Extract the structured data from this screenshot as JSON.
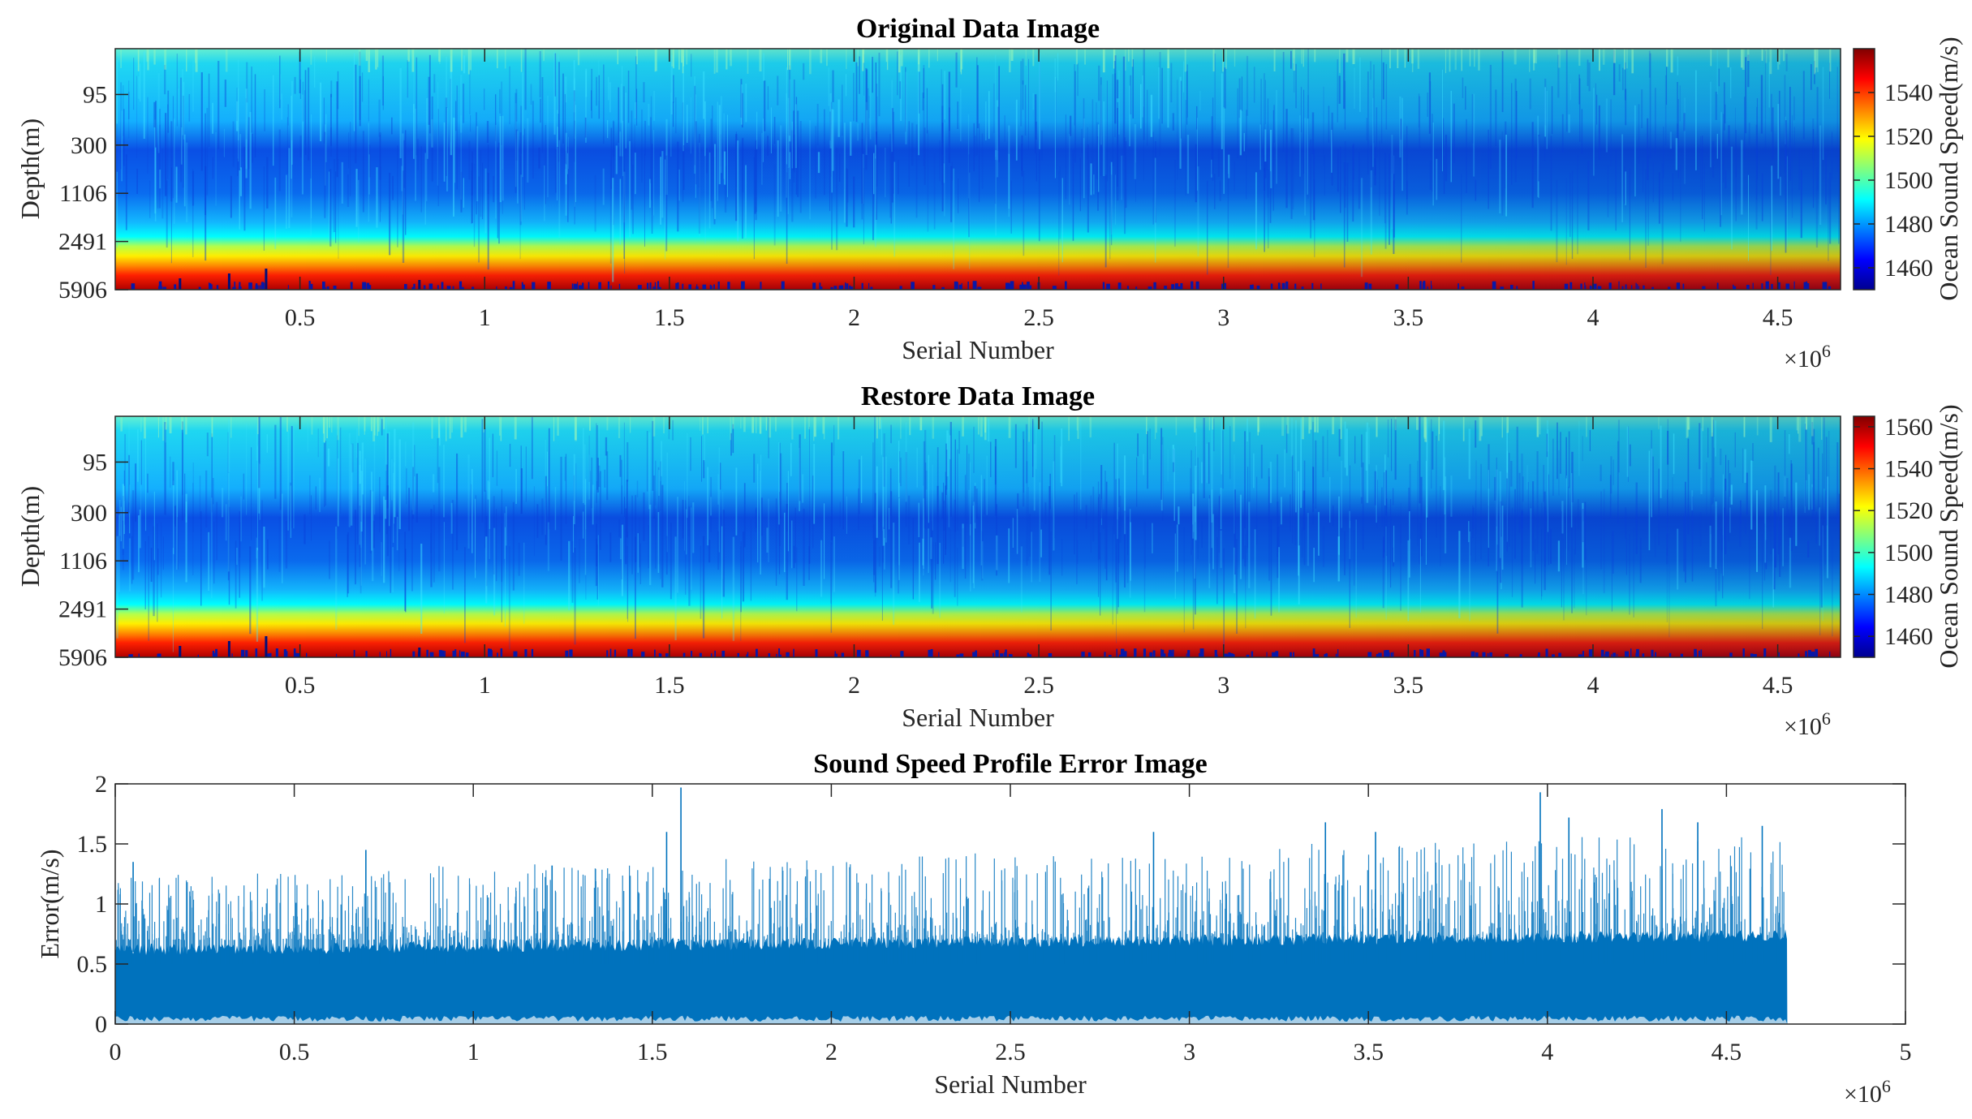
{
  "chart_data": [
    {
      "type": "heatmap",
      "title": "Original Data Image",
      "xlabel": "Serial Number",
      "ylabel": "Depth(m)",
      "x_multiplier": "×10",
      "x_multiplier_exp": "6",
      "x_ticks": [
        0.5,
        1,
        1.5,
        2,
        2.5,
        3,
        3.5,
        4,
        4.5
      ],
      "x_tick_labels": [
        "0.5",
        "1",
        "1.5",
        "2",
        "2.5",
        "3",
        "3.5",
        "4",
        "4.5"
      ],
      "x_range": [
        0,
        4.67
      ],
      "y_tick_labels": [
        "95",
        "300",
        "1106",
        "2491",
        "5906"
      ],
      "colorbar": {
        "label": "Ocean Sound Speed(m/s)",
        "range": [
          1450,
          1560
        ],
        "ticks": [
          1460,
          1480,
          1500,
          1520,
          1540
        ],
        "tick_labels": [
          "1460",
          "1480",
          "1500",
          "1520",
          "1540"
        ]
      },
      "depth_profile_bands": [
        {
          "depth_band": "surface",
          "speed": 1505
        },
        {
          "depth_band": "95",
          "speed": 1490
        },
        {
          "depth_band": "300",
          "speed": 1478
        },
        {
          "depth_band": "1106",
          "speed": 1476
        },
        {
          "depth_band": "2491",
          "speed": 1495
        },
        {
          "depth_band": "5906",
          "speed": 1555
        }
      ]
    },
    {
      "type": "heatmap",
      "title": "Restore Data Image",
      "xlabel": "Serial Number",
      "ylabel": "Depth(m)",
      "x_multiplier": "×10",
      "x_multiplier_exp": "6",
      "x_ticks": [
        0.5,
        1,
        1.5,
        2,
        2.5,
        3,
        3.5,
        4,
        4.5
      ],
      "x_tick_labels": [
        "0.5",
        "1",
        "1.5",
        "2",
        "2.5",
        "3",
        "3.5",
        "4",
        "4.5"
      ],
      "x_range": [
        0,
        4.67
      ],
      "y_tick_labels": [
        "95",
        "300",
        "1106",
        "2491",
        "5906"
      ],
      "colorbar": {
        "label": "Ocean Sound Speed(m/s)",
        "range": [
          1450,
          1565
        ],
        "ticks": [
          1460,
          1480,
          1500,
          1520,
          1540,
          1560
        ],
        "tick_labels": [
          "1460",
          "1480",
          "1500",
          "1520",
          "1540",
          "1560"
        ]
      },
      "depth_profile_bands": [
        {
          "depth_band": "surface",
          "speed": 1505
        },
        {
          "depth_band": "95",
          "speed": 1490
        },
        {
          "depth_band": "300",
          "speed": 1478
        },
        {
          "depth_band": "1106",
          "speed": 1476
        },
        {
          "depth_band": "2491",
          "speed": 1495
        },
        {
          "depth_band": "5906",
          "speed": 1555
        }
      ]
    },
    {
      "type": "area",
      "title": "Sound Speed Profile Error Image",
      "xlabel": "Serial Number",
      "ylabel": "Error(m/s)",
      "x_multiplier": "×10",
      "x_multiplier_exp": "6",
      "xlim": [
        0,
        5
      ],
      "ylim": [
        0,
        2
      ],
      "x_ticks": [
        0,
        0.5,
        1,
        1.5,
        2,
        2.5,
        3,
        3.5,
        4,
        4.5,
        5
      ],
      "x_tick_labels": [
        "0",
        "0.5",
        "1",
        "1.5",
        "2",
        "2.5",
        "3",
        "3.5",
        "4",
        "4.5",
        "5"
      ],
      "y_ticks": [
        0,
        0.5,
        1,
        1.5,
        2
      ],
      "y_tick_labels": [
        "0",
        "0.5",
        "1",
        "1.5",
        "2"
      ],
      "data_extent_x": 4.67,
      "series_color": "#0072bd",
      "typical_range": [
        0.05,
        0.75
      ],
      "peak_spikes": [
        {
          "x": 0.05,
          "y": 1.35
        },
        {
          "x": 0.7,
          "y": 1.45
        },
        {
          "x": 1.22,
          "y": 1.32
        },
        {
          "x": 1.54,
          "y": 1.6
        },
        {
          "x": 1.58,
          "y": 1.97
        },
        {
          "x": 2.9,
          "y": 1.6
        },
        {
          "x": 3.38,
          "y": 1.68
        },
        {
          "x": 3.52,
          "y": 1.6
        },
        {
          "x": 3.98,
          "y": 1.93
        },
        {
          "x": 4.06,
          "y": 1.72
        },
        {
          "x": 4.32,
          "y": 1.79
        },
        {
          "x": 4.42,
          "y": 1.68
        },
        {
          "x": 4.6,
          "y": 1.65
        }
      ]
    }
  ]
}
